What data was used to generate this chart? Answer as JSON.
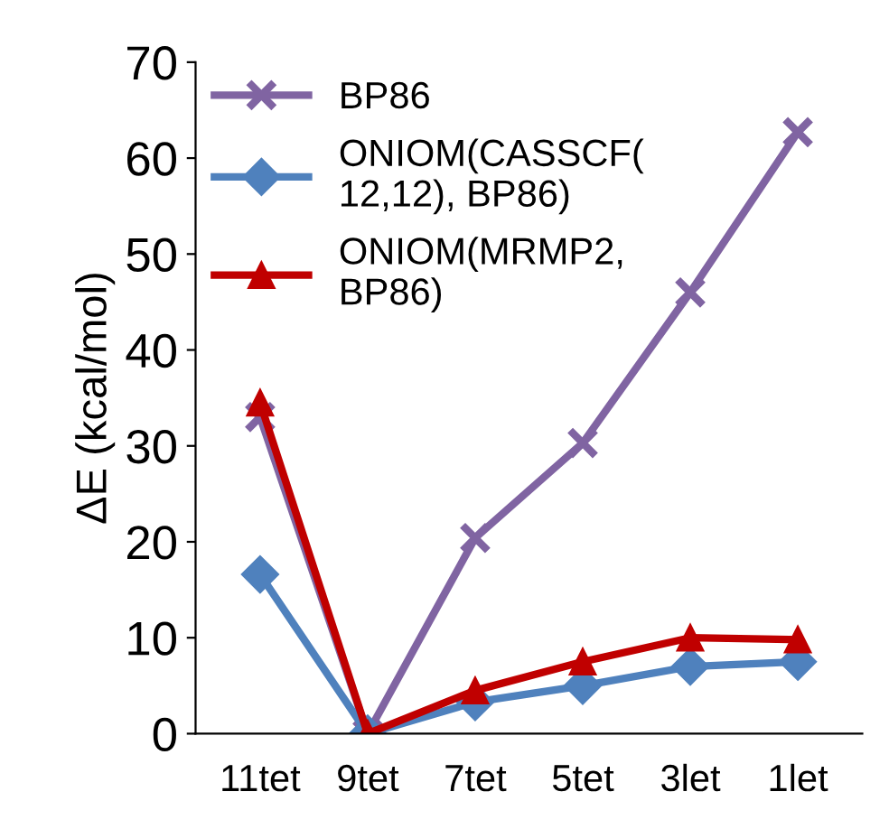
{
  "chart_data": {
    "type": "line",
    "ylabel": "ΔE (kcal/mol)",
    "categories": [
      "11tet",
      "9tet",
      "7tet",
      "5tet",
      "3let",
      "1let"
    ],
    "ylim": [
      0,
      70
    ],
    "yticks": [
      0,
      10,
      20,
      30,
      40,
      50,
      60,
      70
    ],
    "grid": false,
    "legend": "top left",
    "line_style": "solid",
    "series": [
      {
        "name": "BP86",
        "color": "#8064a2",
        "marker": "cross",
        "values": [
          33,
          0,
          20.4,
          30.3,
          46,
          62.7
        ]
      },
      {
        "name": "ONIOM(CASSCF(\n12,12), BP86)",
        "color": "#4f81bd",
        "marker": "diamond",
        "values": [
          16.6,
          0,
          3.3,
          5,
          7,
          7.5
        ]
      },
      {
        "name": "ONIOM(MRMP2,\nBP86)",
        "color": "#c00000",
        "marker": "triangle",
        "values": [
          34.5,
          0,
          4.5,
          7.5,
          10,
          9.8
        ]
      }
    ]
  }
}
